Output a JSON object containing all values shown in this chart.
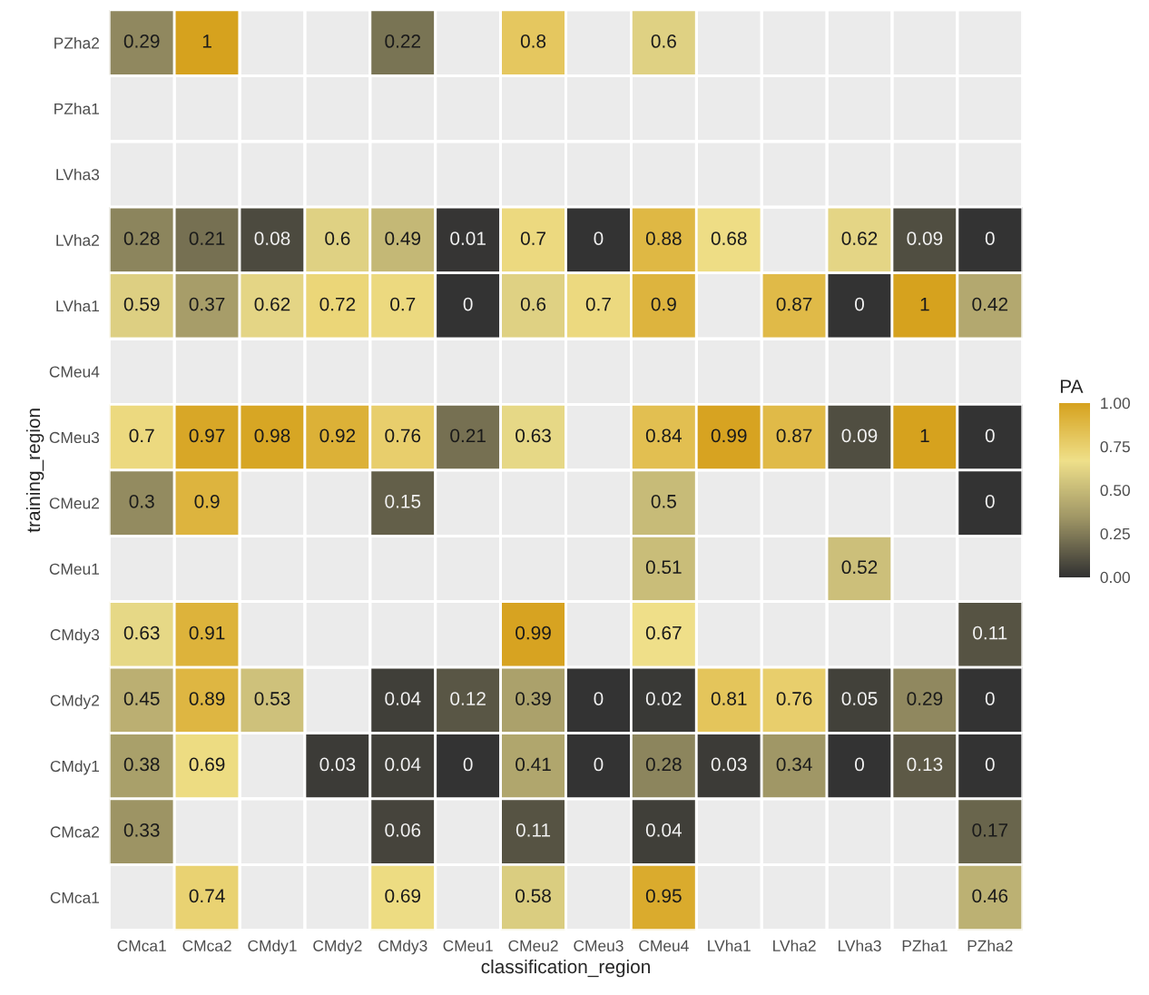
{
  "chart_data": {
    "type": "heatmap",
    "xlabel": "classification_region",
    "ylabel": "training_region",
    "clabel": "PA",
    "categories": [
      "CMca1",
      "CMca2",
      "CMdy1",
      "CMdy2",
      "CMdy3",
      "CMeu1",
      "CMeu2",
      "CMeu3",
      "CMeu4",
      "LVha1",
      "LVha2",
      "LVha3",
      "PZha1",
      "PZha2"
    ],
    "y_categories": [
      "PZha2",
      "PZha1",
      "LVha3",
      "LVha2",
      "LVha1",
      "CMeu4",
      "CMeu3",
      "CMeu2",
      "CMeu1",
      "CMdy3",
      "CMdy2",
      "CMdy1",
      "CMca2",
      "CMca1"
    ],
    "cells": [
      [
        0.29,
        1,
        null,
        null,
        0.22,
        null,
        0.8,
        null,
        0.6,
        null,
        null,
        null,
        null,
        null
      ],
      [
        null,
        null,
        null,
        null,
        null,
        null,
        null,
        null,
        null,
        null,
        null,
        null,
        null,
        null
      ],
      [
        null,
        null,
        null,
        null,
        null,
        null,
        null,
        null,
        null,
        null,
        null,
        null,
        null,
        null
      ],
      [
        0.28,
        0.21,
        0.08,
        0.6,
        0.49,
        0.01,
        0.7,
        0,
        0.88,
        0.68,
        null,
        0.62,
        0.09,
        0
      ],
      [
        0.59,
        0.37,
        0.62,
        0.72,
        0.7,
        0,
        0.6,
        0.7,
        0.9,
        null,
        0.87,
        0,
        1,
        0.42
      ],
      [
        null,
        null,
        null,
        null,
        null,
        null,
        null,
        null,
        null,
        null,
        null,
        null,
        null,
        null
      ],
      [
        0.7,
        0.97,
        0.98,
        0.92,
        0.76,
        0.21,
        0.63,
        null,
        0.84,
        0.99,
        0.87,
        0.09,
        1,
        0
      ],
      [
        0.3,
        0.9,
        null,
        null,
        0.15,
        null,
        null,
        null,
        0.5,
        null,
        null,
        null,
        null,
        0
      ],
      [
        null,
        null,
        null,
        null,
        null,
        null,
        null,
        null,
        0.51,
        null,
        null,
        0.52,
        null,
        null
      ],
      [
        0.63,
        0.91,
        null,
        null,
        null,
        null,
        0.99,
        null,
        0.67,
        null,
        null,
        null,
        null,
        0.11
      ],
      [
        0.45,
        0.89,
        0.53,
        null,
        0.04,
        0.12,
        0.39,
        0,
        0.02,
        0.81,
        0.76,
        0.05,
        0.29,
        0
      ],
      [
        0.38,
        0.69,
        null,
        0.03,
        0.04,
        0,
        0.41,
        0,
        0.28,
        0.03,
        0.34,
        0,
        0.13,
        0
      ],
      [
        0.33,
        null,
        null,
        null,
        0.06,
        null,
        0.11,
        null,
        0.04,
        null,
        null,
        null,
        null,
        0.17
      ],
      [
        null,
        0.74,
        null,
        null,
        0.69,
        null,
        0.58,
        null,
        0.95,
        null,
        null,
        null,
        null,
        0.46
      ]
    ],
    "clim": [
      0,
      1
    ],
    "cticks": [
      {
        "value": 0,
        "label": "0.00"
      },
      {
        "value": 0.25,
        "label": "0.25"
      },
      {
        "value": 0.5,
        "label": "0.50"
      },
      {
        "value": 0.75,
        "label": "0.75"
      },
      {
        "value": 1,
        "label": "1.00"
      }
    ],
    "colors": [
      "#333333",
      "#9e9565",
      "#efe08a",
      "#d6a21e"
    ],
    "data_labels": true,
    "grid": false
  }
}
